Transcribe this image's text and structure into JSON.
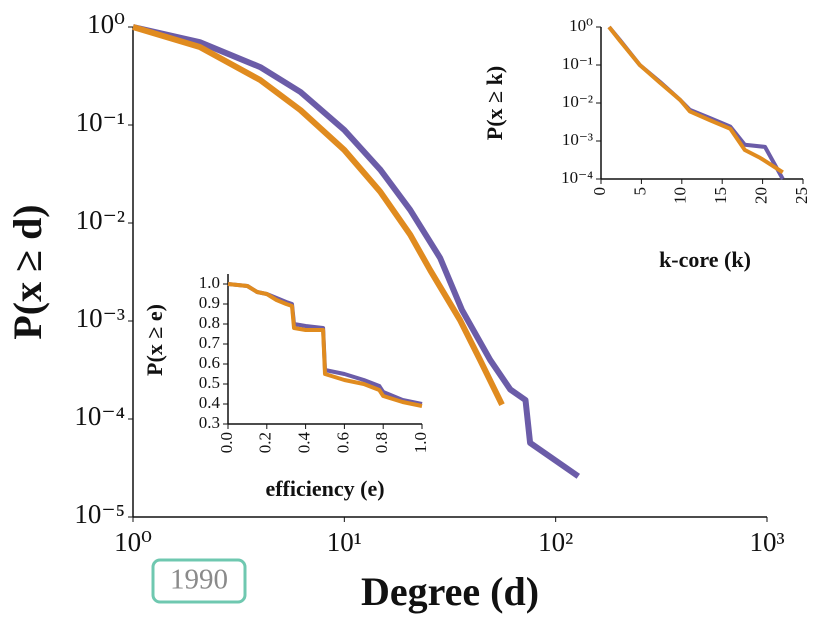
{
  "badge": "1990",
  "chart_data": [
    {
      "type": "line",
      "xlabel": "Degree (d)",
      "ylabel": "P(x ≥ d)",
      "xscale": "log",
      "yscale": "log",
      "xlim": [
        1,
        1000
      ],
      "ylim": [
        1e-05,
        1
      ],
      "xticks": [
        {
          "value": 1,
          "label": "10⁰"
        },
        {
          "value": 10,
          "label": "10¹"
        },
        {
          "value": 100,
          "label": "10²"
        },
        {
          "value": 1000,
          "label": "10³"
        }
      ],
      "yticks": [
        {
          "value": 1,
          "label": "10⁰"
        },
        {
          "value": 0.1,
          "label": "10⁻¹"
        },
        {
          "value": 0.01,
          "label": "10⁻²"
        },
        {
          "value": 0.001,
          "label": "10⁻³"
        },
        {
          "value": 0.0001,
          "label": "10⁻⁴"
        },
        {
          "value": 1e-05,
          "label": "10⁻⁵"
        }
      ],
      "grid": false,
      "series": [
        {
          "color": "#6b5ca8",
          "x": [
            1,
            2.07,
            4.0,
            6.2,
            10,
            14.8,
            20.5,
            28.4,
            36,
            49,
            61,
            72,
            75.7,
            128
          ],
          "values": [
            1,
            0.7,
            0.39,
            0.217,
            0.089,
            0.035,
            0.0136,
            0.0044,
            0.0013,
            0.0004,
            0.0002,
            0.000156,
            5.7e-05,
            2.6e-05
          ]
        },
        {
          "color": "#e08b1f",
          "x": [
            1,
            2.07,
            4.0,
            6.2,
            10,
            14.8,
            20.5,
            25.5,
            35.3,
            43.9,
            55.7
          ],
          "values": [
            1,
            0.625,
            0.288,
            0.142,
            0.0556,
            0.0208,
            0.0076,
            0.0033,
            0.00102,
            0.0004,
            0.00014
          ]
        }
      ]
    },
    {
      "type": "line",
      "xlabel": "efficiency (e)",
      "ylabel": "P(x ≥ e)",
      "xscale": "linear",
      "yscale": "linear",
      "xlim": [
        0,
        1
      ],
      "ylim": [
        0.3,
        1.05
      ],
      "xticks": [
        {
          "value": 0,
          "label": "0.0"
        },
        0.2,
        0.4,
        0.6,
        0.8,
        {
          "value": 1,
          "label": "1.0"
        }
      ],
      "yticks": [
        0.3,
        0.4,
        0.5,
        0.6,
        0.7,
        0.8,
        0.9,
        {
          "value": 1,
          "label": "1.0"
        }
      ],
      "grid": false,
      "series": [
        {
          "color": "#6b5ca8",
          "x": [
            0,
            0.1,
            0.15,
            0.2,
            0.25,
            0.3,
            0.33,
            0.34,
            0.4,
            0.49,
            0.5,
            0.6,
            0.7,
            0.78,
            0.8,
            0.9,
            1.0
          ],
          "values": [
            1.0,
            0.99,
            0.96,
            0.95,
            0.93,
            0.91,
            0.9,
            0.8,
            0.79,
            0.78,
            0.57,
            0.55,
            0.52,
            0.49,
            0.46,
            0.42,
            0.4
          ]
        },
        {
          "color": "#e08b1f",
          "x": [
            0,
            0.1,
            0.15,
            0.2,
            0.25,
            0.3,
            0.33,
            0.34,
            0.4,
            0.49,
            0.5,
            0.6,
            0.7,
            0.78,
            0.8,
            0.9,
            1.0
          ],
          "values": [
            1.0,
            0.99,
            0.96,
            0.95,
            0.92,
            0.9,
            0.89,
            0.78,
            0.77,
            0.77,
            0.55,
            0.52,
            0.5,
            0.47,
            0.44,
            0.41,
            0.39
          ]
        }
      ]
    },
    {
      "type": "line",
      "xlabel": "k-core (k)",
      "ylabel": "P(x ≥ k)",
      "xscale": "linear",
      "yscale": "log",
      "xlim": [
        0,
        25
      ],
      "ylim": [
        0.0001,
        1
      ],
      "xticks": [
        0,
        5,
        10,
        15,
        20,
        25
      ],
      "yticks": [
        {
          "value": 1,
          "label": "10⁰"
        },
        {
          "value": 0.1,
          "label": "10⁻¹"
        },
        {
          "value": 0.01,
          "label": "10⁻²"
        },
        {
          "value": 0.001,
          "label": "10⁻³"
        },
        {
          "value": 0.0001,
          "label": "10⁻⁴"
        }
      ],
      "grid": false,
      "series": [
        {
          "color": "#6b5ca8",
          "x": [
            1,
            2.35,
            4.8,
            7.3,
            9.8,
            11,
            13.5,
            16,
            17.8,
            20.3,
            22.5
          ],
          "values": [
            1,
            0.45,
            0.1,
            0.036,
            0.012,
            0.0066,
            0.004,
            0.0024,
            0.0008,
            0.0007,
            0.0001
          ]
        },
        {
          "color": "#e08b1f",
          "x": [
            1,
            2.35,
            4.8,
            7.3,
            9.8,
            11,
            13.5,
            16,
            17.8,
            19.7,
            22.5
          ],
          "values": [
            1,
            0.43,
            0.1,
            0.034,
            0.012,
            0.006,
            0.0035,
            0.0021,
            0.00058,
            0.00036,
            0.00015
          ]
        }
      ]
    }
  ]
}
